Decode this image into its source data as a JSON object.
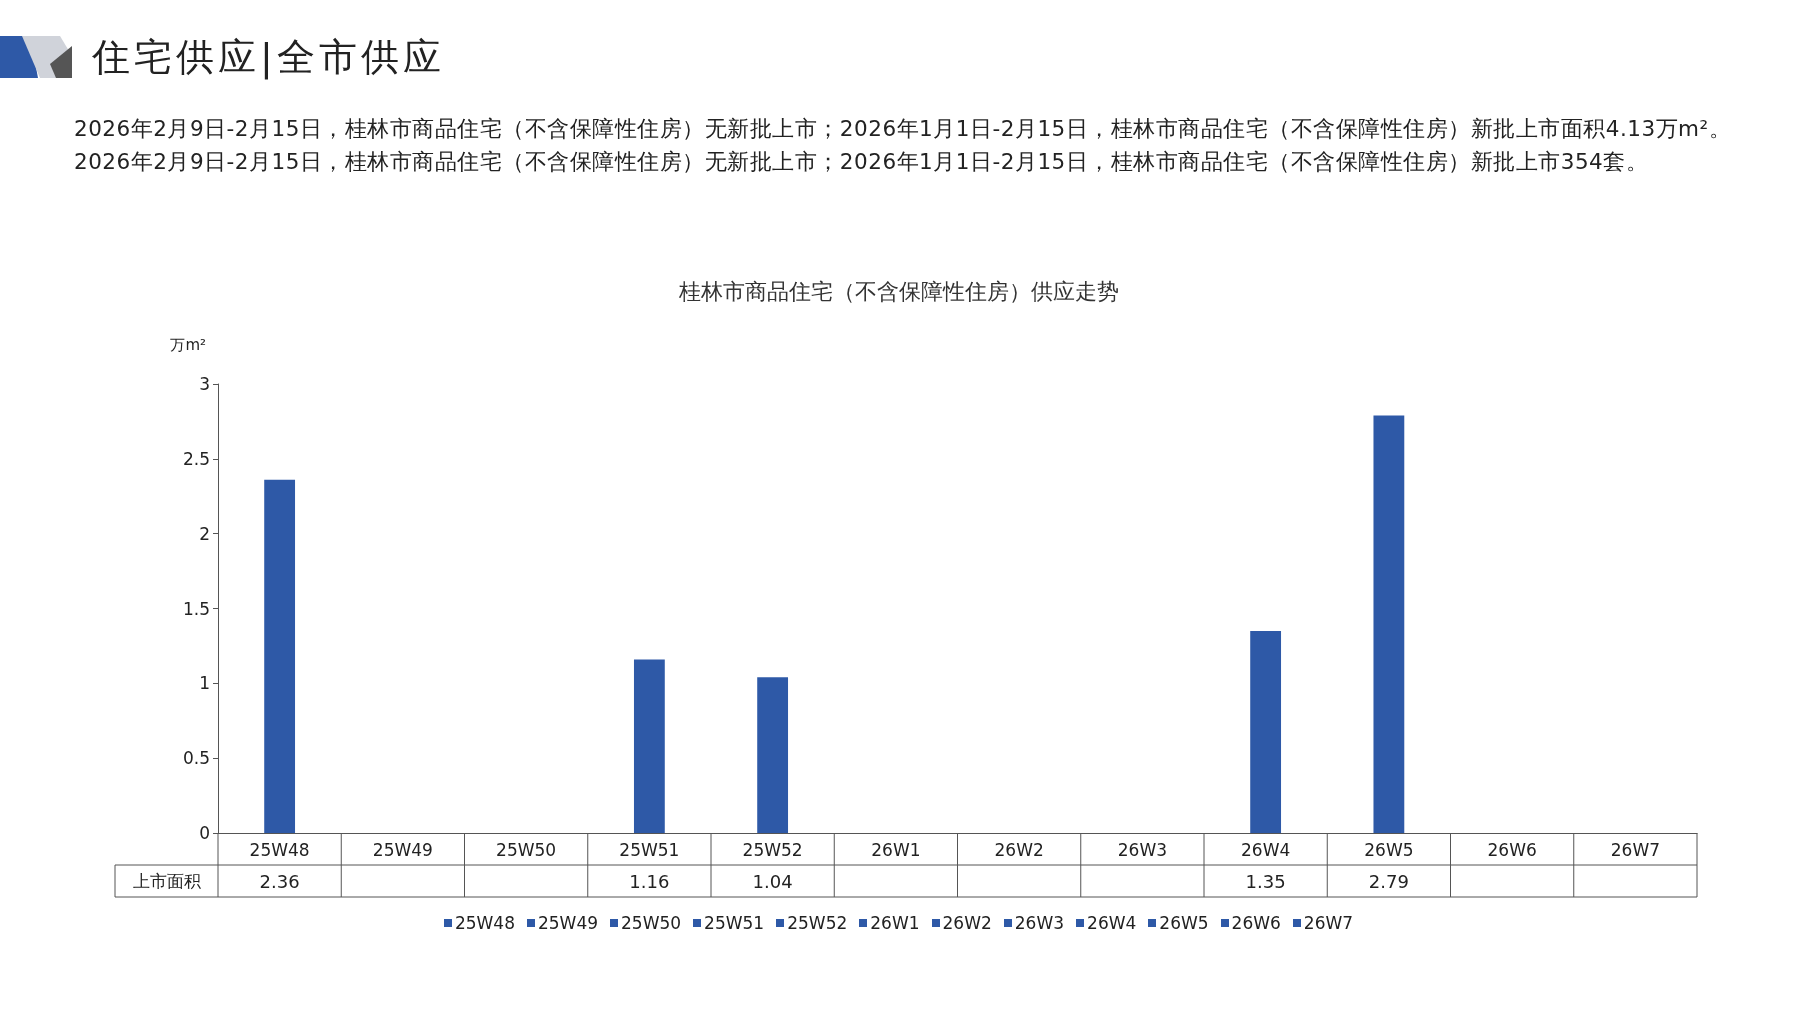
{
  "chart_data": {
    "type": "bar",
    "title": "桂林市商品住宅（不含保障性住房）供应走势",
    "ylabel": "万m²",
    "annotations": [
      "住宅供应|全市供应",
      "2026年2月9日-2月15日，桂林市商品住宅（不含保障性住房）无新批上市；2026年1月1日-2月15日，桂林市商品住宅（不含保障性住房）新批上市面积4.13万m²。2026年2月9日-2月15日，桂林市商品住宅（不含保障性住房）无新批上市；2026年1月1日-2月15日，桂林市商品住宅（不含保障性住房）新批上市354套。"
    ],
    "categories": [
      "25W48",
      "25W49",
      "25W50",
      "25W51",
      "25W52",
      "26W1",
      "26W2",
      "26W3",
      "26W4",
      "26W5",
      "26W6",
      "26W7"
    ],
    "series": [
      {
        "name": "上市面积",
        "color": "#2e59a7",
        "values": [
          2.36,
          null,
          null,
          1.16,
          1.04,
          null,
          null,
          null,
          1.35,
          2.79,
          null,
          null
        ]
      }
    ],
    "ylim": [
      0,
      3
    ],
    "yticks": [
      0,
      0.5,
      1,
      1.5,
      2,
      2.5,
      3
    ],
    "data_labels": true,
    "legend": "bottom",
    "grid": false
  }
}
